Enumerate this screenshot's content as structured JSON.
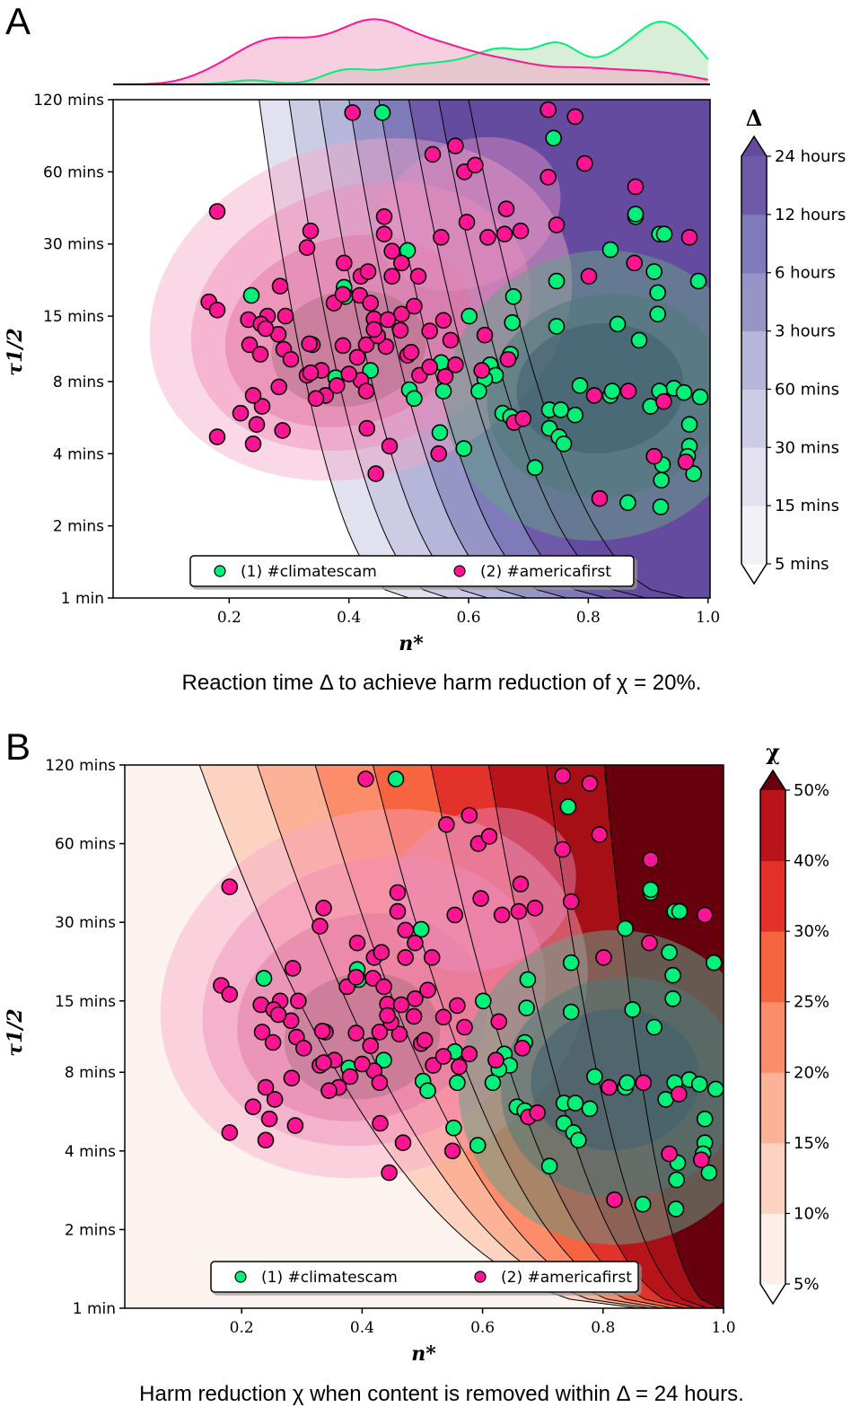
{
  "chart_data": [
    {
      "panel": "A",
      "type": "scatter",
      "subtype": "filled-contour with scatter overlay and KDE density regions",
      "caption": "Reaction time Δ to achieve harm reduction of χ = 20%.",
      "xlabel": "n*",
      "ylabel": "τ1/2",
      "xlim": [
        0.0,
        1.0
      ],
      "ylim_minutes": [
        1,
        120
      ],
      "yscale": "log2",
      "x_ticks": [
        "0.2",
        "0.4",
        "0.6",
        "0.8",
        "1.0"
      ],
      "x_tick_values": [
        0.2,
        0.4,
        0.6,
        0.8,
        1.0
      ],
      "y_ticks": [
        "1 min",
        "2 mins",
        "4 mins",
        "8 mins",
        "15 mins",
        "30 mins",
        "60 mins",
        "120 mins"
      ],
      "y_tick_values": [
        1,
        2,
        4,
        8,
        15,
        30,
        60,
        120
      ],
      "colorbar": {
        "title": "Δ",
        "colormap": "Purples",
        "levels": [
          "5 mins",
          "15 mins",
          "30 mins",
          "60 mins",
          "3 hours",
          "6 hours",
          "12 hours",
          "24 hours"
        ],
        "colors": [
          "#f2f1f7",
          "#e2e1ef",
          "#cccde5",
          "#b5b6d9",
          "#9794c6",
          "#7f7bba",
          "#6e5aa8",
          "#644ba0"
        ],
        "extend": "both"
      },
      "marginal_density": "top",
      "legend": {
        "placement": "lower-center",
        "entries": [
          {
            "label": "(1) #climatescam",
            "color": "#00f07a"
          },
          {
            "label": "(2) #americafirst",
            "color": "#ff1493"
          }
        ]
      }
    },
    {
      "panel": "B",
      "type": "scatter",
      "subtype": "filled-contour with scatter overlay and KDE density regions",
      "caption": "Harm reduction χ when content is removed within Δ = 24 hours.",
      "xlabel": "n*",
      "ylabel": "τ1/2",
      "xlim": [
        0.0,
        1.0
      ],
      "ylim_minutes": [
        1,
        120
      ],
      "yscale": "log2",
      "x_ticks": [
        "0.2",
        "0.4",
        "0.6",
        "0.8",
        "1.0"
      ],
      "x_tick_values": [
        0.2,
        0.4,
        0.6,
        0.8,
        1.0
      ],
      "y_ticks": [
        "1 min",
        "2 mins",
        "4 mins",
        "8 mins",
        "15 mins",
        "30 mins",
        "60 mins",
        "120 mins"
      ],
      "y_tick_values": [
        1,
        2,
        4,
        8,
        15,
        30,
        60,
        120
      ],
      "colorbar": {
        "title": "χ",
        "colormap": "Reds",
        "levels": [
          "5%",
          "10%",
          "15%",
          "20%",
          "25%",
          "30%",
          "40%",
          "50%"
        ],
        "colors": [
          "#fdefe8",
          "#fcd3c1",
          "#fcb297",
          "#fc8c6a",
          "#f6653f",
          "#e2322a",
          "#b81419",
          "#a50f15"
        ],
        "top_extend_color": "#67000d",
        "extend": "both"
      },
      "legend": {
        "placement": "lower-center",
        "entries": [
          {
            "label": "(1) #climatescam",
            "color": "#00f07a"
          },
          {
            "label": "(2) #americafirst",
            "color": "#ff1493"
          }
        ]
      }
    }
  ],
  "series": [
    {
      "name": "(1) #climatescam",
      "color": "#00f07a",
      "points": [
        [
          0.456,
          106
        ],
        [
          0.742,
          83
        ],
        [
          0.879,
          39
        ],
        [
          0.919,
          33
        ],
        [
          0.837,
          28.4
        ],
        [
          0.747,
          21
        ],
        [
          0.984,
          21
        ],
        [
          0.91,
          23
        ],
        [
          0.916,
          18.8
        ],
        [
          0.916,
          15.3
        ],
        [
          0.849,
          13.9
        ],
        [
          0.747,
          13.6
        ],
        [
          0.673,
          14.1
        ],
        [
          0.601,
          15
        ],
        [
          0.675,
          18.1
        ],
        [
          0.498,
          28.2
        ],
        [
          0.392,
          19.8
        ],
        [
          0.237,
          18.3
        ],
        [
          0.394,
          18.1
        ],
        [
          0.885,
          11.9
        ],
        [
          0.67,
          10.4
        ],
        [
          0.636,
          9.4
        ],
        [
          0.645,
          8.5
        ],
        [
          0.627,
          8.2
        ],
        [
          0.617,
          7.3
        ],
        [
          0.554,
          9.6
        ],
        [
          0.558,
          7.3
        ],
        [
          0.501,
          7.4
        ],
        [
          0.509,
          6.8
        ],
        [
          0.378,
          8.3
        ],
        [
          0.436,
          8.9
        ],
        [
          0.552,
          4.9
        ],
        [
          0.592,
          4.2
        ],
        [
          0.657,
          5.9
        ],
        [
          0.67,
          5.7
        ],
        [
          0.711,
          3.5
        ],
        [
          0.735,
          6.1
        ],
        [
          0.754,
          6.1
        ],
        [
          0.778,
          5.8
        ],
        [
          0.735,
          5.1
        ],
        [
          0.751,
          4.7
        ],
        [
          0.759,
          4.4
        ],
        [
          0.786,
          7.7
        ],
        [
          0.837,
          7.0
        ],
        [
          0.84,
          7.3
        ],
        [
          0.866,
          2.5
        ],
        [
          0.921,
          2.4
        ],
        [
          0.904,
          6.3
        ],
        [
          0.943,
          7.5
        ],
        [
          0.919,
          7.3
        ],
        [
          0.96,
          7.2
        ],
        [
          0.987,
          6.9
        ],
        [
          0.969,
          5.3
        ],
        [
          0.969,
          4.3
        ],
        [
          0.966,
          3.9
        ],
        [
          0.924,
          3.6
        ],
        [
          0.922,
          3.1
        ],
        [
          0.976,
          3.3
        ],
        [
          0.879,
          40
        ],
        [
          0.927,
          33
        ]
      ]
    },
    {
      "name": "(2) #americafirst",
      "color": "#ff1493",
      "points": [
        [
          0.406,
          106
        ],
        [
          0.733,
          109
        ],
        [
          0.778,
          102
        ],
        [
          0.54,
          71
        ],
        [
          0.578,
          77
        ],
        [
          0.593,
          60
        ],
        [
          0.611,
          64
        ],
        [
          0.733,
          57
        ],
        [
          0.794,
          65
        ],
        [
          0.597,
          37
        ],
        [
          0.663,
          42
        ],
        [
          0.66,
          33
        ],
        [
          0.687,
          34
        ],
        [
          0.747,
          36
        ],
        [
          0.554,
          32
        ],
        [
          0.632,
          32
        ],
        [
          0.879,
          52
        ],
        [
          0.969,
          32
        ],
        [
          0.877,
          25
        ],
        [
          0.801,
          22
        ],
        [
          0.18,
          41
        ],
        [
          0.459,
          39
        ],
        [
          0.459,
          33
        ],
        [
          0.472,
          28
        ],
        [
          0.336,
          34
        ],
        [
          0.33,
          29
        ],
        [
          0.392,
          25
        ],
        [
          0.42,
          22
        ],
        [
          0.432,
          23
        ],
        [
          0.472,
          22
        ],
        [
          0.488,
          25
        ],
        [
          0.516,
          22
        ],
        [
          0.285,
          20
        ],
        [
          0.375,
          17
        ],
        [
          0.39,
          18.5
        ],
        [
          0.418,
          18.3
        ],
        [
          0.436,
          17
        ],
        [
          0.442,
          14.6
        ],
        [
          0.488,
          15.3
        ],
        [
          0.509,
          16.5
        ],
        [
          0.558,
          14.4
        ],
        [
          0.166,
          17.2
        ],
        [
          0.18,
          15.9
        ],
        [
          0.232,
          14.5
        ],
        [
          0.264,
          15
        ],
        [
          0.294,
          15
        ],
        [
          0.253,
          13.9
        ],
        [
          0.282,
          12.6
        ],
        [
          0.261,
          13.3
        ],
        [
          0.234,
          11.4
        ],
        [
          0.252,
          10.4
        ],
        [
          0.291,
          10.9
        ],
        [
          0.339,
          11.4
        ],
        [
          0.303,
          9.9
        ],
        [
          0.33,
          8.5
        ],
        [
          0.361,
          7.0
        ],
        [
          0.283,
          7.6
        ],
        [
          0.354,
          8.9
        ],
        [
          0.38,
          7.7
        ],
        [
          0.42,
          8.1
        ],
        [
          0.429,
          7.3
        ],
        [
          0.39,
          11.3
        ],
        [
          0.414,
          10.1
        ],
        [
          0.429,
          11.4
        ],
        [
          0.462,
          11.2
        ],
        [
          0.465,
          14.5
        ],
        [
          0.486,
          13.1
        ],
        [
          0.535,
          13
        ],
        [
          0.57,
          11.9
        ],
        [
          0.627,
          12.5
        ],
        [
          0.255,
          6.3
        ],
        [
          0.219,
          5.9
        ],
        [
          0.24,
          7.0
        ],
        [
          0.246,
          5.3
        ],
        [
          0.24,
          4.4
        ],
        [
          0.18,
          4.7
        ],
        [
          0.289,
          5.0
        ],
        [
          0.43,
          5.1
        ],
        [
          0.445,
          3.3
        ],
        [
          0.55,
          4.0
        ],
        [
          0.676,
          5.4
        ],
        [
          0.691,
          5.6
        ],
        [
          0.578,
          9.4
        ],
        [
          0.622,
          8.9
        ],
        [
          0.518,
          8.5
        ],
        [
          0.561,
          8.4
        ],
        [
          0.535,
          9.2
        ],
        [
          0.819,
          2.6
        ],
        [
          0.81,
          7.0
        ],
        [
          0.867,
          7.3
        ],
        [
          0.926,
          6.6
        ],
        [
          0.91,
          3.9
        ],
        [
          0.963,
          3.7
        ],
        [
          0.666,
          9.9
        ],
        [
          0.498,
          10.3
        ],
        [
          0.504,
          10.6
        ],
        [
          0.448,
          12.4
        ],
        [
          0.442,
          13.2
        ],
        [
          0.334,
          11.5
        ],
        [
          0.336,
          8.7
        ],
        [
          0.4,
          8.6
        ],
        [
          0.345,
          6.8
        ],
        [
          0.468,
          4.3
        ]
      ]
    }
  ],
  "labels": {
    "panel_a": "A",
    "panel_b": "B",
    "legend_1": "(1) #climatescam",
    "legend_2": "(2) #americafirst"
  }
}
